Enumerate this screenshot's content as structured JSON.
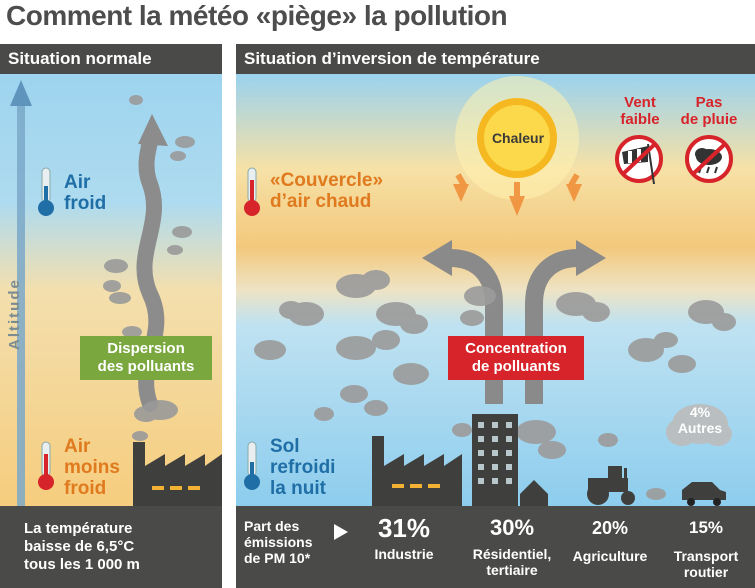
{
  "title": "Comment la météo «piège» la pollution",
  "left_panel": {
    "header": "Situation normale",
    "air_cold_line1": "Air",
    "air_cold_line2": "froid",
    "air_warm_line1": "Air",
    "air_warm_line2": "moins",
    "air_warm_line3": "froid",
    "altitude": "Altitude",
    "dispersion_line1": "Dispersion",
    "dispersion_line2": "des polluants",
    "footer_line1": "La température",
    "footer_line2": "baisse de 6,5°C",
    "footer_line3": "tous les 1 000 m"
  },
  "right_panel": {
    "header": "Situation d’inversion de température",
    "heat": "Chaleur",
    "lid_line1": "«Couvercle»",
    "lid_line2": "d’air chaud",
    "wind_line1": "Vent",
    "wind_line2": "faible",
    "rain_line1": "Pas",
    "rain_line2": "de pluie",
    "concentration_line1": "Concentration",
    "concentration_line2": "de polluants",
    "soil_line1": "Sol",
    "soil_line2": "refroidi",
    "soil_line3": "la nuit",
    "others_pct": "4%",
    "others_label": "Autres",
    "footer_intro_line1": "Part des",
    "footer_intro_line2": "émissions",
    "footer_intro_line3": "de PM 10*",
    "emissions": [
      {
        "pct": "31%",
        "label1": "Industrie",
        "label2": ""
      },
      {
        "pct": "30%",
        "label1": "Résidentiel,",
        "label2": "tertiaire"
      },
      {
        "pct": "20%",
        "label1": "Agriculture",
        "label2": ""
      },
      {
        "pct": "15%",
        "label1": "Transport",
        "label2": "routier"
      }
    ]
  },
  "colors": {
    "dark_band": "#4a4a48",
    "blue_text": "#1f6fa6",
    "orange_text": "#e07a1f",
    "green_box": "#7aa83f",
    "red_box": "#d7242a",
    "sun": "#f5b820"
  },
  "icons": [
    "thermometer-icon",
    "factory-icon",
    "smoke-cloud-icon",
    "sun-icon",
    "windsock-icon",
    "rain-cloud-icon",
    "building-icon",
    "house-icon",
    "tractor-icon",
    "car-icon",
    "play-arrow-icon"
  ]
}
